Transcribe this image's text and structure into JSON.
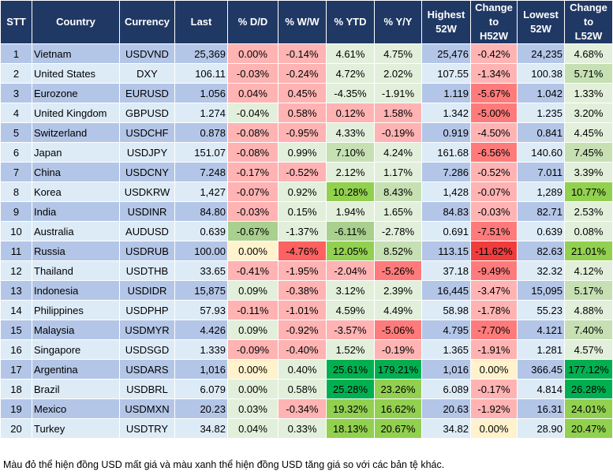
{
  "palette": {
    "row_odd": "#b4c6e7",
    "row_even": "#ddebf7",
    "header": "#203864",
    "LR": "#ffb3b3",
    "R": "#ff7b7b",
    "RR": "#ff6161",
    "DR": "#f03c3c",
    "LG": "#e2efda",
    "G": "#c6e0b4",
    "MG": "#a9d08e",
    "BG": "#92d050",
    "DG": "#00b050",
    "Y": "#fff2cc"
  },
  "chart_data": {
    "type": "table",
    "headers": [
      "STT",
      "Country",
      "Currency",
      "Last",
      "% D/D",
      "% W/W",
      "% YTD",
      "% Y/Y",
      "Highest 52W",
      "Change to H52W",
      "Lowest 52W",
      "Change to L52W"
    ],
    "rows": [
      {
        "cells": [
          "1",
          "Vietnam",
          "USDVND",
          "25,369",
          "0.00%",
          "-0.14%",
          "4.61%",
          "4.75%",
          "25,476",
          "-0.42%",
          "24,235",
          "4.68%"
        ],
        "colors": [
          "LR",
          "LR",
          "LG",
          "LG",
          "LR",
          "LG"
        ]
      },
      {
        "cells": [
          "2",
          "United States",
          "DXY",
          "106.11",
          "-0.03%",
          "-0.24%",
          "4.72%",
          "2.02%",
          "107.55",
          "-1.34%",
          "100.38",
          "5.71%"
        ],
        "colors": [
          "LR",
          "LR",
          "LG",
          "LG",
          "LR",
          "G"
        ]
      },
      {
        "cells": [
          "3",
          "Eurozone",
          "EURUSD",
          "1.056",
          "0.04%",
          "0.45%",
          "-4.35%",
          "-1.91%",
          "1.119",
          "-5.67%",
          "1.042",
          "1.33%"
        ],
        "colors": [
          "LR",
          "LR",
          "LG",
          "LG",
          "R",
          "LG"
        ]
      },
      {
        "cells": [
          "4",
          "United Kingdom",
          "GBPUSD",
          "1.274",
          "-0.04%",
          "0.58%",
          "0.12%",
          "1.58%",
          "1.342",
          "-5.00%",
          "1.235",
          "3.20%"
        ],
        "colors": [
          "LG",
          "LR",
          "LR",
          "LR",
          "R",
          "LG"
        ]
      },
      {
        "cells": [
          "5",
          "Switzerland",
          "USDCHF",
          "0.878",
          "-0.08%",
          "-0.95%",
          "4.33%",
          "-0.19%",
          "0.919",
          "-4.50%",
          "0.841",
          "4.45%"
        ],
        "colors": [
          "LR",
          "LR",
          "LG",
          "LR",
          "LR",
          "LG"
        ]
      },
      {
        "cells": [
          "6",
          "Japan",
          "USDJPY",
          "151.07",
          "-0.08%",
          "0.99%",
          "7.10%",
          "4.24%",
          "161.68",
          "-6.56%",
          "140.60",
          "7.45%"
        ],
        "colors": [
          "LR",
          "LG",
          "G",
          "LG",
          "R",
          "G"
        ]
      },
      {
        "cells": [
          "7",
          "China",
          "USDCNY",
          "7.248",
          "-0.17%",
          "-0.52%",
          "2.12%",
          "1.17%",
          "7.286",
          "-0.52%",
          "7.011",
          "3.39%"
        ],
        "colors": [
          "LR",
          "LR",
          "LG",
          "LG",
          "LR",
          "LG"
        ]
      },
      {
        "cells": [
          "8",
          "Korea",
          "USDKRW",
          "1,427",
          "-0.07%",
          "0.92%",
          "10.28%",
          "8.43%",
          "1,428",
          "-0.07%",
          "1,289",
          "10.77%"
        ],
        "colors": [
          "LR",
          "LG",
          "BG",
          "G",
          "LR",
          "BG"
        ]
      },
      {
        "cells": [
          "9",
          "India",
          "USDINR",
          "84.80",
          "-0.03%",
          "0.15%",
          "1.94%",
          "1.65%",
          "84.83",
          "-0.03%",
          "82.71",
          "2.53%"
        ],
        "colors": [
          "LR",
          "LG",
          "LG",
          "LG",
          "LR",
          "LG"
        ]
      },
      {
        "cells": [
          "10",
          "Australia",
          "AUDUSD",
          "0.639",
          "-0.67%",
          "-1.37%",
          "-6.11%",
          "-2.78%",
          "0.691",
          "-7.51%",
          "0.639",
          "0.08%"
        ],
        "colors": [
          "MG",
          "LG",
          "MG",
          "LG",
          "R",
          "LG"
        ]
      },
      {
        "cells": [
          "11",
          "Russia",
          "USDRUB",
          "100.00",
          "0.00%",
          "-4.76%",
          "12.05%",
          "8.52%",
          "113.15",
          "-11.62%",
          "82.63",
          "21.01%"
        ],
        "colors": [
          "Y",
          "RR",
          "BG",
          "G",
          "DR",
          "BG"
        ]
      },
      {
        "cells": [
          "12",
          "Thailand",
          "USDTHB",
          "33.65",
          "-0.41%",
          "-1.95%",
          "-2.04%",
          "-5.26%",
          "37.18",
          "-9.49%",
          "32.32",
          "4.12%"
        ],
        "colors": [
          "LR",
          "LR",
          "LR",
          "R",
          "R",
          "LG"
        ]
      },
      {
        "cells": [
          "13",
          "Indonesia",
          "USDIDR",
          "15,875",
          "0.09%",
          "-0.38%",
          "3.12%",
          "2.39%",
          "16,445",
          "-3.47%",
          "15,095",
          "5.17%"
        ],
        "colors": [
          "LG",
          "LR",
          "LG",
          "LG",
          "LR",
          "G"
        ]
      },
      {
        "cells": [
          "14",
          "Philippines",
          "USDPHP",
          "57.93",
          "-0.11%",
          "-1.01%",
          "4.59%",
          "4.49%",
          "58.98",
          "-1.78%",
          "55.23",
          "4.88%"
        ],
        "colors": [
          "LR",
          "LR",
          "LG",
          "LG",
          "LR",
          "LG"
        ]
      },
      {
        "cells": [
          "15",
          "Malaysia",
          "USDMYR",
          "4.426",
          "0.09%",
          "-0.92%",
          "-3.57%",
          "-5.06%",
          "4.795",
          "-7.70%",
          "4.121",
          "7.40%"
        ],
        "colors": [
          "LG",
          "LR",
          "LR",
          "R",
          "R",
          "G"
        ]
      },
      {
        "cells": [
          "16",
          "Singapore",
          "USDSGD",
          "1.339",
          "-0.09%",
          "-0.40%",
          "1.52%",
          "-0.19%",
          "1.365",
          "-1.91%",
          "1.281",
          "4.57%"
        ],
        "colors": [
          "LR",
          "LR",
          "LG",
          "LR",
          "LR",
          "LG"
        ]
      },
      {
        "cells": [
          "17",
          "Argentina",
          "USDARS",
          "1,016",
          "0.00%",
          "0.40%",
          "25.61%",
          "179.21%",
          "1,016",
          "0.00%",
          "366.45",
          "177.12%"
        ],
        "colors": [
          "Y",
          "LG",
          "DG",
          "DG",
          "Y",
          "DG"
        ]
      },
      {
        "cells": [
          "18",
          "Brazil",
          "USDBRL",
          "6.079",
          "0.00%",
          "0.58%",
          "25.28%",
          "23.26%",
          "6.089",
          "-0.17%",
          "4.814",
          "26.28%"
        ],
        "colors": [
          "LG",
          "LG",
          "DG",
          "BG",
          "LR",
          "DG"
        ]
      },
      {
        "cells": [
          "19",
          "Mexico",
          "USDMXN",
          "20.23",
          "0.03%",
          "-0.34%",
          "19.32%",
          "16.62%",
          "20.63",
          "-1.92%",
          "16.31",
          "24.01%"
        ],
        "colors": [
          "LG",
          "LR",
          "BG",
          "BG",
          "LR",
          "BG"
        ]
      },
      {
        "cells": [
          "20",
          "Turkey",
          "USDTRY",
          "34.82",
          "0.04%",
          "0.33%",
          "18.13%",
          "20.67%",
          "34.82",
          "0.00%",
          "28.90",
          "20.47%"
        ],
        "colors": [
          "LG",
          "LG",
          "BG",
          "BG",
          "Y",
          "BG"
        ]
      }
    ]
  },
  "footnote": "Màu đỏ thể hiện đồng USD mất giá và màu xanh thể hiện đồng USD tăng giá so với các bản tệ khác."
}
